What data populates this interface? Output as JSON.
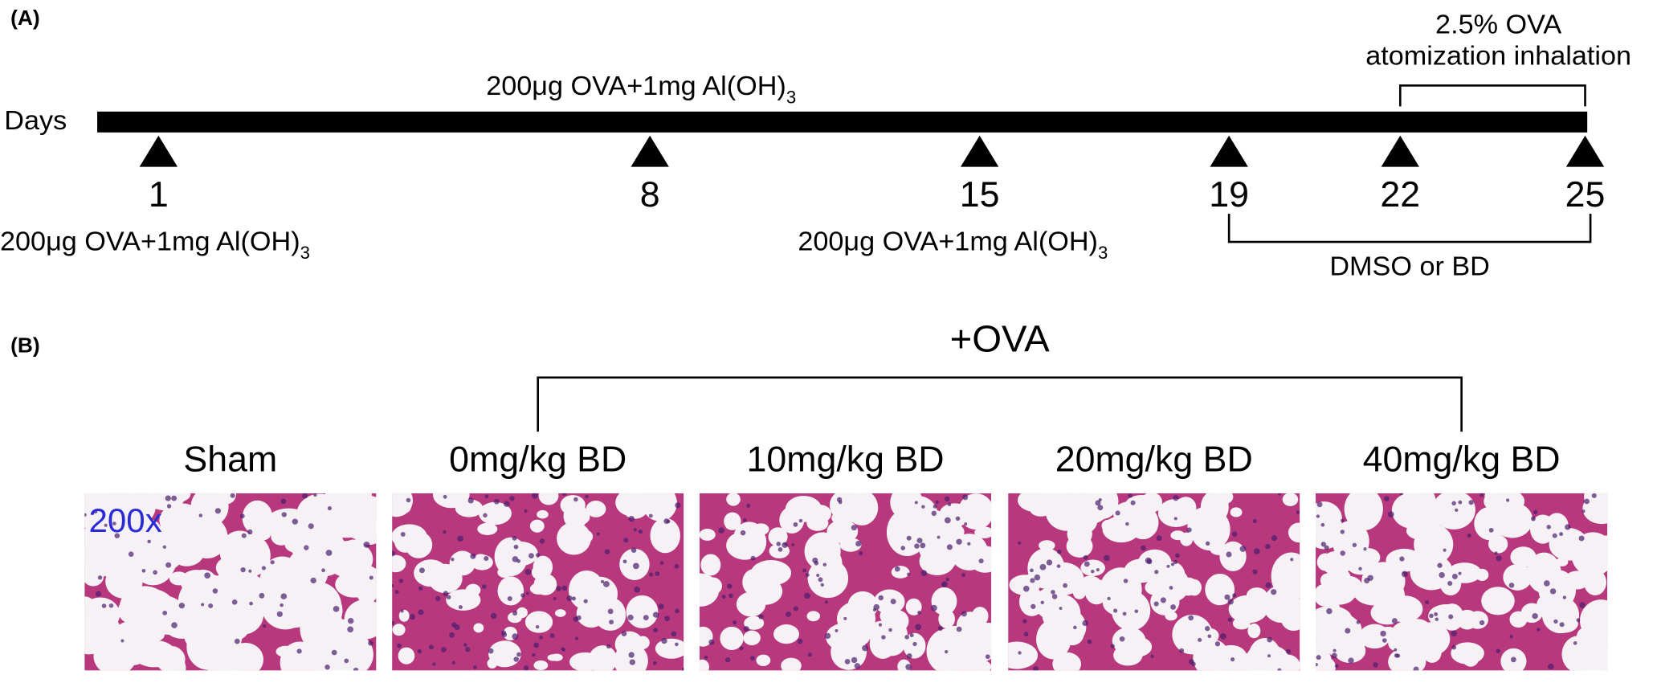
{
  "panel_a": {
    "label": "(A)",
    "axis_label": "Days",
    "top_annotation": {
      "text": "200μg OVA+1mg Al(OH)",
      "subscript": "3"
    },
    "days": [
      "1",
      "8",
      "15",
      "19",
      "22",
      "25"
    ],
    "bottom_annotations": [
      {
        "text": "200μg OVA+1mg Al(OH)",
        "subscript": "3"
      },
      {
        "text": "200μg OVA+1mg Al(OH)",
        "subscript": "3"
      }
    ],
    "inhalation": [
      "2.5% OVA",
      "atomization inhalation"
    ],
    "treatment": "DMSO or BD"
  },
  "panel_b": {
    "label": "(B)",
    "group_label": "+OVA",
    "magnification": "200x",
    "groups": [
      "Sham",
      "0mg/kg BD",
      "10mg/kg BD",
      "20mg/kg BD",
      "40mg/kg BD"
    ]
  }
}
